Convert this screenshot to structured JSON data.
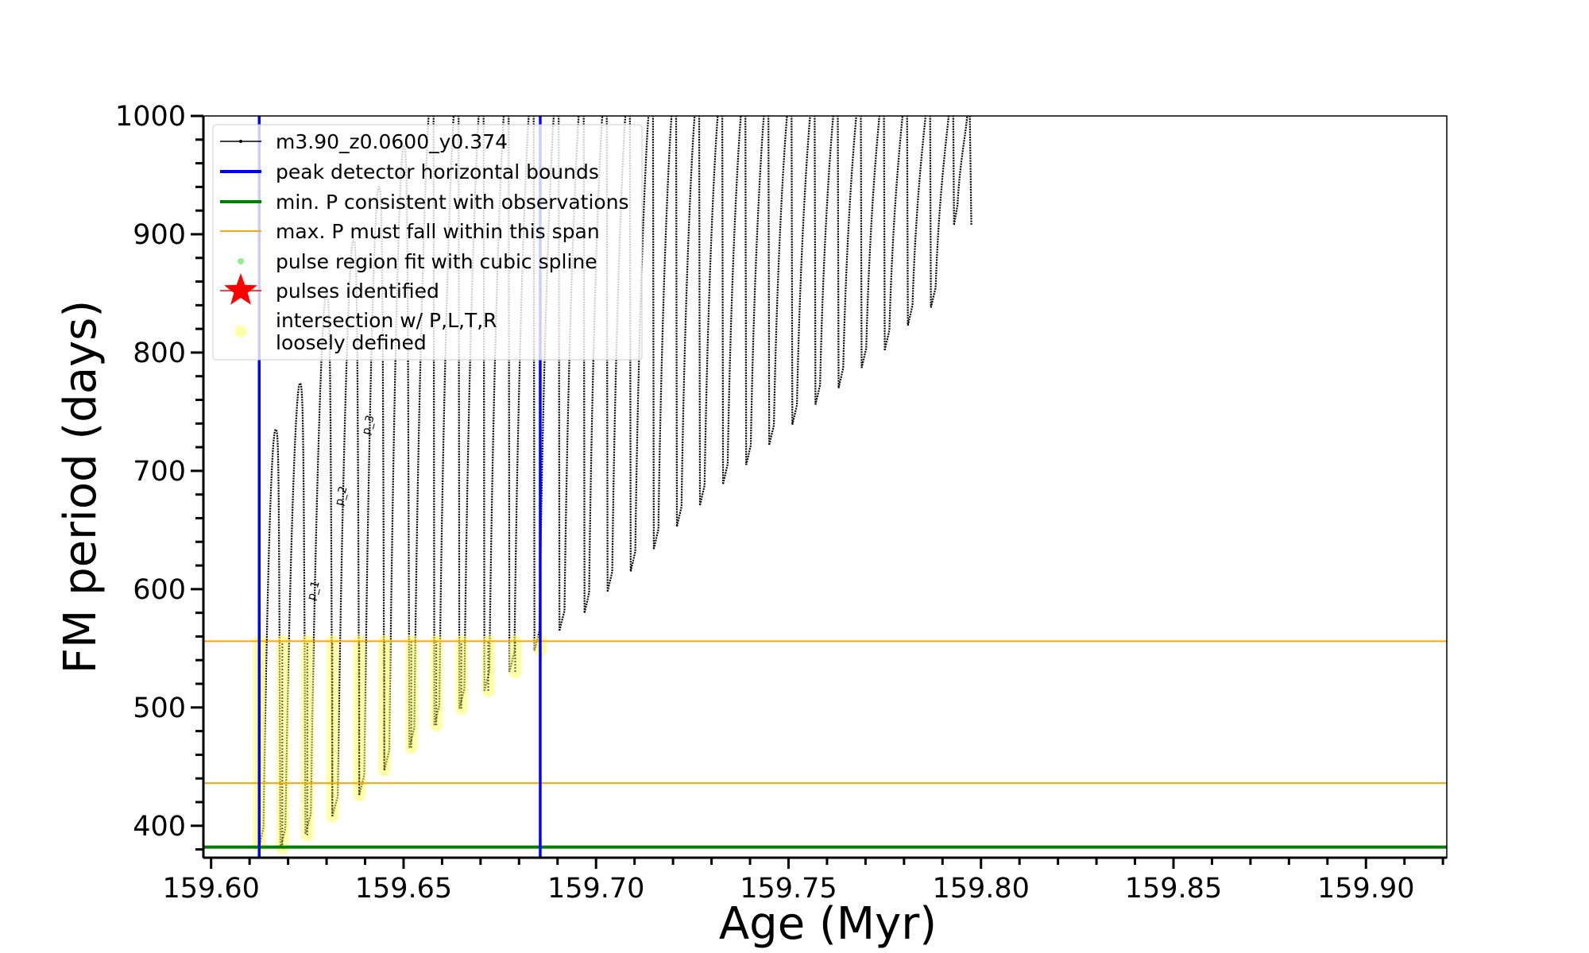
{
  "chart_data": {
    "type": "line",
    "xlabel": "Age (Myr)",
    "ylabel": "FM period (days)",
    "xlim": [
      159.598,
      159.921
    ],
    "ylim": [
      373,
      1000
    ],
    "x_ticks": [
      159.6,
      159.65,
      159.7,
      159.75,
      159.8,
      159.85,
      159.9
    ],
    "x_tick_labels": [
      "159.60",
      "159.65",
      "159.70",
      "159.75",
      "159.80",
      "159.85",
      "159.90"
    ],
    "y_ticks": [
      400,
      500,
      600,
      700,
      800,
      900,
      1000
    ],
    "y_tick_labels": [
      "400",
      "500",
      "600",
      "700",
      "800",
      "900",
      "1000"
    ],
    "grid": false,
    "legend_position": "top-left",
    "legend": [
      {
        "label": "m3.90_z0.0600_y0.374",
        "style": "line-dot",
        "color": "#000000"
      },
      {
        "label": "peak detector horizontal bounds",
        "style": "line",
        "color": "#0000ff"
      },
      {
        "label": "min. P consistent with observations",
        "style": "line",
        "color": "#008000"
      },
      {
        "label": "max. P must fall within this span",
        "style": "thin-line",
        "color": "#ffa500"
      },
      {
        "label": "pulse region fit with cubic spline",
        "style": "dot",
        "color": "#90ee90"
      },
      {
        "label": "pulses identified",
        "style": "star",
        "color": "#ff0000"
      },
      {
        "label": "intersection w/ P,L,T,R\nloosely defined",
        "style": "circle",
        "color": "#ffff99"
      }
    ],
    "vertical_lines": [
      {
        "name": "peak detector horizontal bounds",
        "x": 159.6125,
        "color": "#0000ff"
      },
      {
        "name": "peak detector horizontal bounds",
        "x": 159.6855,
        "color": "#0000ff"
      }
    ],
    "horizontal_lines": [
      {
        "name": "min. P consistent with observations",
        "y": 382,
        "color": "#008000"
      },
      {
        "name": "max. P must fall within this span",
        "y": 556,
        "color": "#ffa500"
      },
      {
        "name": "max. P must fall within this span",
        "y": 436,
        "color": "#ffa500"
      }
    ],
    "series": [
      {
        "name": "m3.90_z0.0600_y0.374",
        "color": "#000000",
        "pulses": [
          {
            "x_start": 159.6125,
            "x_end": 159.618,
            "p_min": 382,
            "p_max": 735
          },
          {
            "x_start": 159.618,
            "x_end": 159.6245,
            "p_min": 381,
            "p_max": 774
          },
          {
            "x_start": 159.6245,
            "x_end": 159.6315,
            "p_min": 393,
            "p_max": 850
          },
          {
            "x_start": 159.6315,
            "x_end": 159.6385,
            "p_min": 408,
            "p_max": 895
          },
          {
            "x_start": 159.6385,
            "x_end": 159.645,
            "p_min": 426,
            "p_max": 940
          },
          {
            "x_start": 159.645,
            "x_end": 159.6515,
            "p_min": 447,
            "p_max": 975
          },
          {
            "x_start": 159.6515,
            "x_end": 159.658,
            "p_min": 466,
            "p_max": 1000
          },
          {
            "x_start": 159.658,
            "x_end": 159.6645,
            "p_min": 485,
            "p_max": 1000
          },
          {
            "x_start": 159.6645,
            "x_end": 159.671,
            "p_min": 499,
            "p_max": 1000
          },
          {
            "x_start": 159.671,
            "x_end": 159.6775,
            "p_min": 514,
            "p_max": 1000
          },
          {
            "x_start": 159.6775,
            "x_end": 159.684,
            "p_min": 530,
            "p_max": 1000
          },
          {
            "x_start": 159.684,
            "x_end": 159.6905,
            "p_min": 548,
            "p_max": 1000
          },
          {
            "x_start": 159.6905,
            "x_end": 159.697,
            "p_min": 565,
            "p_max": 1000
          },
          {
            "x_start": 159.697,
            "x_end": 159.703,
            "p_min": 580,
            "p_max": 1000
          },
          {
            "x_start": 159.703,
            "x_end": 159.709,
            "p_min": 598,
            "p_max": 1000
          },
          {
            "x_start": 159.709,
            "x_end": 159.715,
            "p_min": 615,
            "p_max": 1000
          },
          {
            "x_start": 159.715,
            "x_end": 159.721,
            "p_min": 634,
            "p_max": 1000
          },
          {
            "x_start": 159.721,
            "x_end": 159.727,
            "p_min": 653,
            "p_max": 1000
          },
          {
            "x_start": 159.727,
            "x_end": 159.733,
            "p_min": 671,
            "p_max": 1000
          },
          {
            "x_start": 159.733,
            "x_end": 159.739,
            "p_min": 689,
            "p_max": 1000
          },
          {
            "x_start": 159.739,
            "x_end": 159.745,
            "p_min": 705,
            "p_max": 1000
          },
          {
            "x_start": 159.745,
            "x_end": 159.751,
            "p_min": 722,
            "p_max": 1000
          },
          {
            "x_start": 159.751,
            "x_end": 159.757,
            "p_min": 739,
            "p_max": 1000
          },
          {
            "x_start": 159.757,
            "x_end": 159.763,
            "p_min": 756,
            "p_max": 1000
          },
          {
            "x_start": 159.763,
            "x_end": 159.769,
            "p_min": 770,
            "p_max": 1000
          },
          {
            "x_start": 159.769,
            "x_end": 159.775,
            "p_min": 787,
            "p_max": 1000
          },
          {
            "x_start": 159.775,
            "x_end": 159.781,
            "p_min": 802,
            "p_max": 1000
          },
          {
            "x_start": 159.781,
            "x_end": 159.787,
            "p_min": 823,
            "p_max": 1000
          },
          {
            "x_start": 159.787,
            "x_end": 159.793,
            "p_min": 838,
            "p_max": 1000
          },
          {
            "x_start": 159.793,
            "x_end": 159.7975,
            "p_min": 908,
            "p_max": 1000
          }
        ]
      }
    ],
    "intersections": [
      {
        "x": 159.6125,
        "y_min": 383,
        "y_max": 556
      },
      {
        "x": 159.6185,
        "y_min": 381,
        "y_max": 556
      },
      {
        "x": 159.625,
        "y_min": 392,
        "y_max": 556
      },
      {
        "x": 159.6315,
        "y_min": 408,
        "y_max": 556
      },
      {
        "x": 159.6385,
        "y_min": 426,
        "y_max": 556
      },
      {
        "x": 159.645,
        "y_min": 447,
        "y_max": 556
      },
      {
        "x": 159.652,
        "y_min": 466,
        "y_max": 556
      },
      {
        "x": 159.6585,
        "y_min": 485,
        "y_max": 556
      },
      {
        "x": 159.665,
        "y_min": 499,
        "y_max": 556
      },
      {
        "x": 159.672,
        "y_min": 514,
        "y_max": 556
      },
      {
        "x": 159.679,
        "y_min": 530,
        "y_max": 556
      },
      {
        "x": 159.6855,
        "y_min": 548,
        "y_max": 556
      }
    ],
    "annotations": [
      {
        "text": "p_1",
        "x": 159.6268,
        "y": 590
      },
      {
        "text": "p_2",
        "x": 159.634,
        "y": 670
      },
      {
        "text": "p_3",
        "x": 159.641,
        "y": 730
      }
    ]
  }
}
